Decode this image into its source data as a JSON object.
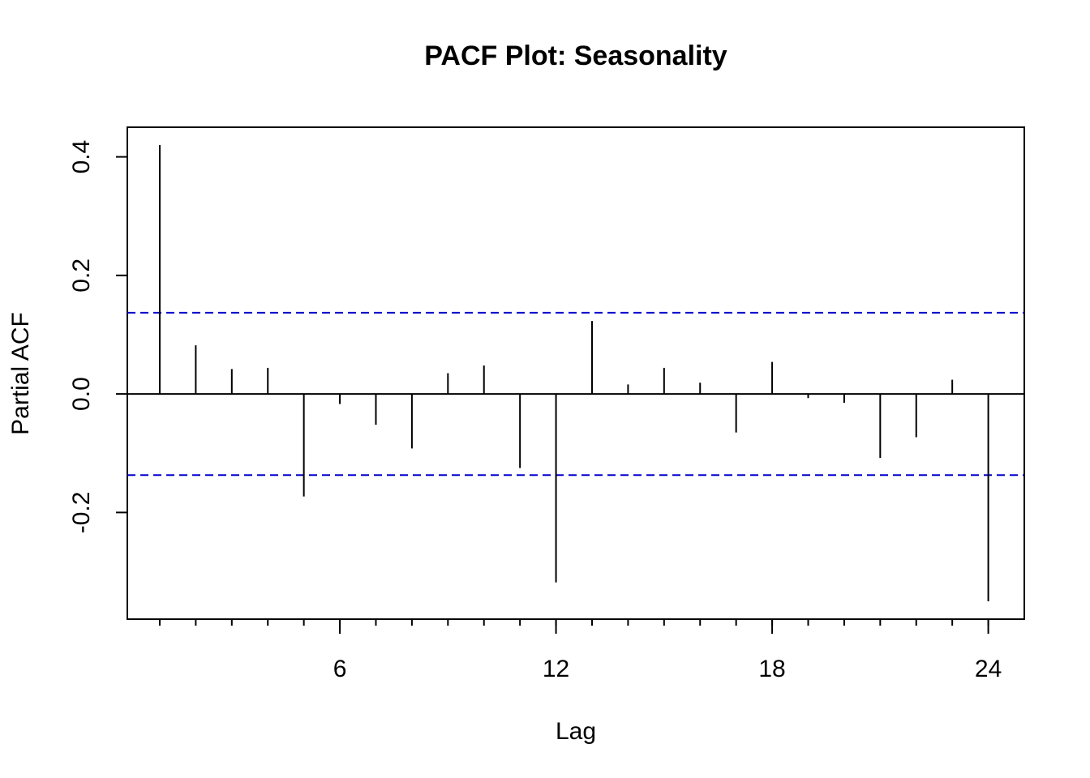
{
  "chart_data": {
    "type": "bar",
    "title": "PACF Plot: Seasonality",
    "xlabel": "Lag",
    "ylabel": "Partial ACF",
    "x": [
      1,
      2,
      3,
      4,
      5,
      6,
      7,
      8,
      9,
      10,
      11,
      12,
      13,
      14,
      15,
      16,
      17,
      18,
      19,
      20,
      21,
      22,
      23,
      24
    ],
    "values": [
      0.42,
      0.082,
      0.042,
      0.044,
      -0.173,
      -0.017,
      -0.052,
      -0.092,
      0.035,
      0.048,
      -0.125,
      -0.318,
      0.123,
      0.016,
      0.044,
      0.019,
      -0.065,
      0.054,
      -0.007,
      -0.015,
      -0.108,
      -0.073,
      0.024,
      -0.35
    ],
    "confidence_bound": 0.137,
    "xlim": [
      0.1,
      25
    ],
    "ylim": [
      -0.38,
      0.45
    ],
    "xticks": [
      6,
      12,
      18,
      24
    ],
    "xtick_labels": [
      "6",
      "12",
      "18",
      "24"
    ],
    "yticks": [
      -0.2,
      0.0,
      0.2,
      0.4
    ],
    "ytick_labels": [
      "-0.2",
      "0.0",
      "0.2",
      "0.4"
    ],
    "grid": false,
    "colors": {
      "spikes": "#000000",
      "confidence_lines": "#0000cc",
      "zero_line": "#000000"
    }
  }
}
